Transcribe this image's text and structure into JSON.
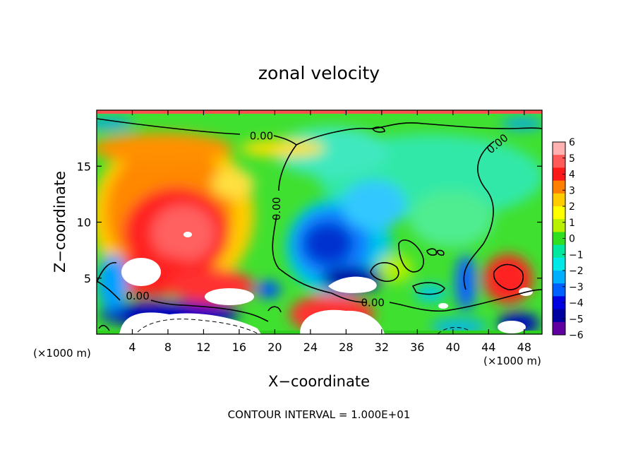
{
  "chart_data": {
    "type": "heatmap",
    "title": "zonal velocity",
    "xlabel": "X−coordinate",
    "ylabel": "Z−coordinate",
    "x_unit_left": "(×1000 m)",
    "x_unit_right": "(×1000 m)",
    "xlim": [
      0,
      50
    ],
    "ylim": [
      0,
      20
    ],
    "x_ticks": [
      4,
      8,
      12,
      16,
      20,
      24,
      28,
      32,
      36,
      40,
      44,
      48
    ],
    "y_ticks": [
      5,
      10,
      15
    ],
    "footer": "CONTOUR INTERVAL = 1.000E+01",
    "colorbar": {
      "ticks": [
        6,
        5,
        4,
        3,
        2,
        1,
        0,
        -1,
        -2,
        -3,
        -4,
        -5,
        -6
      ],
      "tick_labels": [
        "6",
        "5",
        "4",
        "3",
        "2",
        "1",
        "0",
        "−1",
        "−2",
        "−3",
        "−4",
        "−5",
        "−6"
      ],
      "range": [
        -6,
        6
      ],
      "colors": [
        "#ffb0b0",
        "#ff5a5a",
        "#ff1818",
        "#ff8000",
        "#ffcc00",
        "#ffff00",
        "#b8f000",
        "#30e020",
        "#00e8a0",
        "#00e8e8",
        "#00b0ff",
        "#0060ff",
        "#0000e0",
        "#0000a0",
        "#6000a0"
      ]
    },
    "contour_labels": [
      {
        "text": "0.00",
        "x": 18.5,
        "y": 17.7
      },
      {
        "text": "0.00",
        "x": 20.2,
        "y": 11.2
      },
      {
        "text": "0.00",
        "x": 4.6,
        "y": 3.4
      },
      {
        "text": "0.00",
        "x": 31.0,
        "y": 2.8
      },
      {
        "text": "0.00",
        "x": 45.0,
        "y": 17.0
      }
    ]
  }
}
